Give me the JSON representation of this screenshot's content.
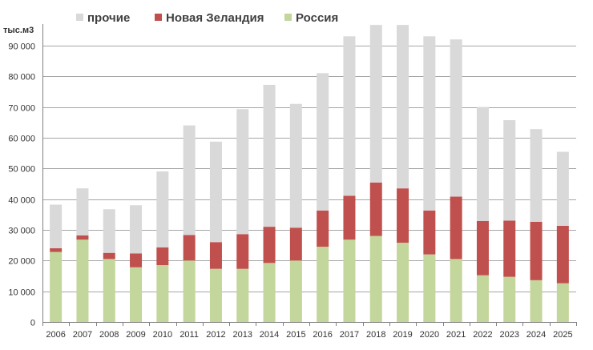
{
  "chart_data": {
    "type": "bar",
    "stacked": true,
    "title": "",
    "xlabel": "",
    "ylabel": "тыс.м3",
    "ylim": [
      0,
      97000
    ],
    "yticks": [
      0,
      10000,
      20000,
      30000,
      40000,
      50000,
      60000,
      70000,
      80000,
      90000
    ],
    "ytick_labels": [
      "0",
      "10 000",
      "20 000",
      "30 000",
      "40 000",
      "50 000",
      "60 000",
      "70 000",
      "80 000",
      "90 000"
    ],
    "grid": true,
    "legend_position": "top",
    "categories": [
      "2006",
      "2007",
      "2008",
      "2009",
      "2010",
      "2011",
      "2012",
      "2013",
      "2014",
      "2015",
      "2016",
      "2017",
      "2018",
      "2019",
      "2020",
      "2021",
      "2022",
      "2023",
      "2024",
      "2025"
    ],
    "series": [
      {
        "name": "Россия",
        "color": "#c3d69b",
        "values": [
          22800,
          26800,
          20500,
          17800,
          18500,
          20000,
          17300,
          17300,
          19200,
          20000,
          24500,
          26800,
          28000,
          25800,
          22000,
          20500,
          15200,
          14700,
          13600,
          12600
        ]
      },
      {
        "name": "Новая Зеландия",
        "color": "#c0504d",
        "values": [
          1200,
          1400,
          2000,
          4500,
          5800,
          8300,
          8700,
          11300,
          11800,
          10700,
          11800,
          14300,
          17400,
          17700,
          14300,
          20300,
          17700,
          18300,
          19000,
          18700
        ]
      },
      {
        "name": "прочие",
        "color": "#d9d9d9",
        "values": [
          14200,
          15300,
          14200,
          15700,
          24700,
          35700,
          32700,
          40700,
          46200,
          40300,
          44700,
          51900,
          51300,
          53200,
          56700,
          51200,
          37100,
          32700,
          30200,
          24100
        ]
      }
    ],
    "legend_order": [
      "прочие",
      "Новая Зеландия",
      "Россия"
    ]
  }
}
